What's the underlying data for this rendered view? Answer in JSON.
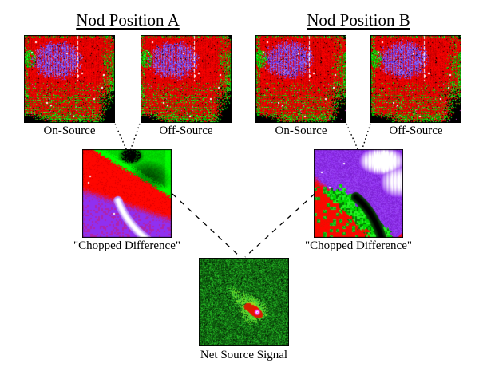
{
  "diagram": {
    "nod_a": {
      "title": "Nod Position A",
      "on_source_label": "On-Source",
      "off_source_label": "Off-Source",
      "chopped_label": "\"Chopped Difference\""
    },
    "nod_b": {
      "title": "Nod Position B",
      "on_source_label": "On-Source",
      "off_source_label": "Off-Source",
      "chopped_label": "\"Chopped Difference\""
    },
    "net_label": "Net Source Signal",
    "palette": {
      "background": "#ffffff",
      "text": "#000000",
      "connector": "#000000",
      "detector_red": "#e60000",
      "detector_purple": "#7d55f5",
      "detector_green": "#00c400",
      "diff_red": "#ff0600",
      "diff_green": "#00d800",
      "diff_purple": "#9030f0",
      "arc_white": "#ffffff",
      "net_bg_green": "#147714",
      "net_source_red": "#e81400",
      "net_core_magenta": "#ff30ff"
    }
  }
}
